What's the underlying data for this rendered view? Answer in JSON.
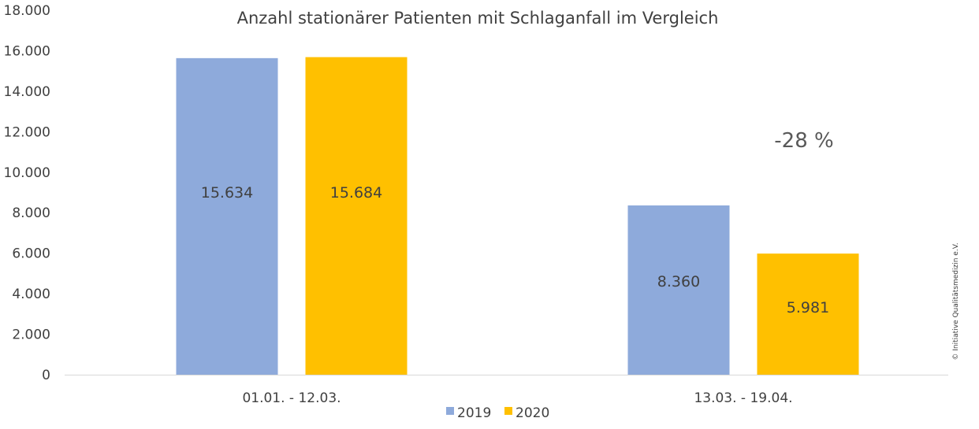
{
  "chart_data": {
    "type": "bar",
    "title": "Anzahl stationärer Patienten mit Schlaganfall im Vergleich",
    "categories": [
      "01.01. - 12.03.",
      "13.03. - 19.04."
    ],
    "series": [
      {
        "name": "2019",
        "values": [
          15634,
          8360
        ],
        "labels": [
          "15.634",
          "8.360"
        ],
        "color": "#8eaadb"
      },
      {
        "name": "2020",
        "values": [
          15684,
          5981
        ],
        "labels": [
          "15.684",
          "5.981"
        ],
        "color": "#ffc000"
      }
    ],
    "ylim": [
      0,
      18000
    ],
    "yticks": [
      0,
      2000,
      4000,
      6000,
      8000,
      10000,
      12000,
      14000,
      16000,
      18000
    ],
    "ytick_labels": [
      "0",
      "2.000",
      "4.000",
      "6.000",
      "8.000",
      "10.000",
      "12.000",
      "14.000",
      "16.000",
      "18.000"
    ],
    "grid": false,
    "legend_position": "bottom",
    "annotation": "-28 %",
    "copyright": "© Initiative Qualitätsmedizin e.V."
  }
}
